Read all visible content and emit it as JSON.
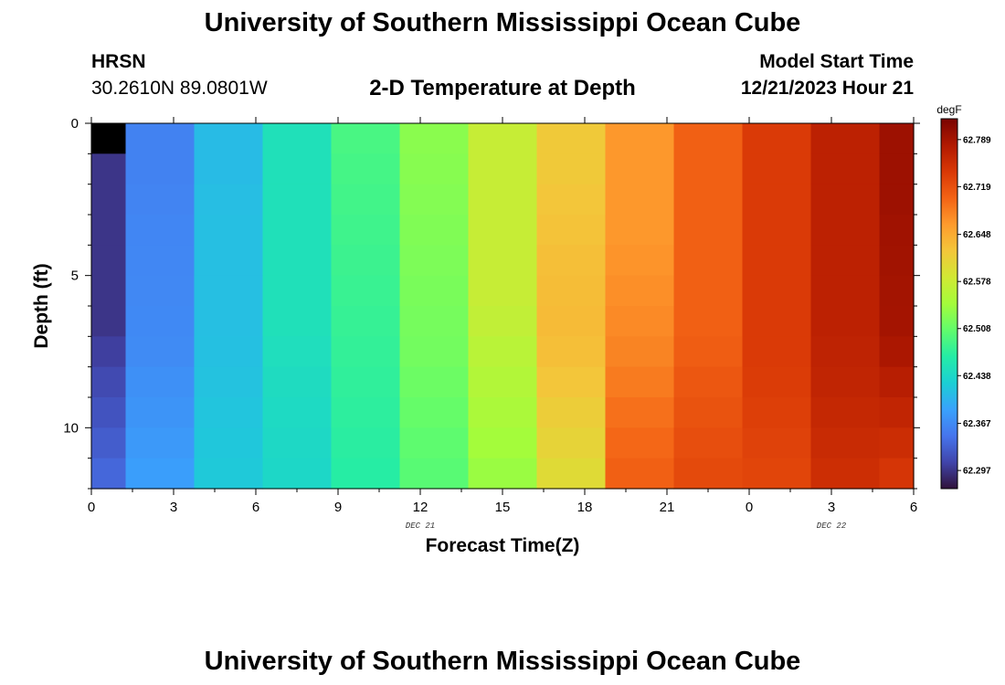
{
  "header": {
    "title": "University of Southern Mississippi Ocean Cube",
    "station_name": "HRSN",
    "station_coords": "30.2610N  89.0801W",
    "plot_title": "2-D Temperature at Depth",
    "model_start_label": "Model Start Time",
    "model_start_time": "12/21/2023 Hour 21"
  },
  "footer": {
    "title": "University of Southern Mississippi Ocean Cube"
  },
  "chart_data": {
    "type": "heatmap",
    "title": "2-D Temperature at Depth",
    "xlabel": "Forecast Time(Z)",
    "ylabel": "Depth (ft)",
    "xlim": [
      0,
      30
    ],
    "ylim": [
      0,
      12
    ],
    "x_tick_labels": [
      "0",
      "3",
      "6",
      "9",
      "12",
      "15",
      "18",
      "21",
      "0",
      "3",
      "6"
    ],
    "date_labels": [
      {
        "text": "DEC 21",
        "x": 12
      },
      {
        "text": "DEC 22",
        "x": 27
      }
    ],
    "y_ticks": [
      0,
      5,
      10
    ],
    "depth_rows": 12,
    "time_columns": [
      0,
      2.5,
      5,
      7.5,
      10,
      12.5,
      15,
      17.5,
      20,
      22.5,
      25,
      27.5,
      30
    ],
    "surface_cell_missing": true,
    "column_values": [
      62.297,
      62.36,
      62.41,
      62.45,
      62.49,
      62.53,
      62.575,
      62.62,
      62.665,
      62.705,
      62.74,
      62.77,
      62.795
    ],
    "depth_adjustments": [
      [
        0,
        0,
        0,
        0,
        0,
        0,
        0,
        0,
        0,
        0,
        0,
        0,
        0
      ],
      [
        0,
        0,
        0,
        0,
        -0.002,
        -0.002,
        0,
        0,
        0,
        0,
        0,
        0,
        0
      ],
      [
        0,
        0.002,
        0.002,
        0,
        -0.004,
        -0.004,
        0,
        0.004,
        0,
        0,
        0,
        0,
        0
      ],
      [
        0,
        0.003,
        0.003,
        0,
        -0.006,
        -0.006,
        0,
        0.006,
        0,
        0,
        0,
        0,
        -0.002
      ],
      [
        0,
        0.004,
        0.003,
        0,
        -0.008,
        -0.008,
        0,
        0.01,
        0.003,
        0,
        0,
        0,
        -0.003
      ],
      [
        0,
        0.005,
        0.003,
        0,
        -0.01,
        -0.01,
        0,
        0.012,
        0.006,
        0,
        0,
        0,
        -0.004
      ],
      [
        0,
        0.006,
        0.003,
        0,
        -0.012,
        -0.012,
        -0.005,
        0.014,
        0.01,
        0,
        0,
        0,
        -0.005
      ],
      [
        0.008,
        0.008,
        0.004,
        -0.003,
        -0.014,
        -0.014,
        -0.012,
        0.01,
        0.014,
        0.003,
        0,
        -0.002,
        -0.01
      ],
      [
        0.016,
        0.012,
        0.006,
        -0.006,
        -0.016,
        -0.018,
        -0.018,
        0.004,
        0.02,
        0.008,
        -0.002,
        -0.004,
        -0.02
      ],
      [
        0.024,
        0.016,
        0.008,
        -0.008,
        -0.018,
        -0.022,
        -0.024,
        -0.004,
        0.028,
        0.012,
        -0.005,
        -0.008,
        -0.03
      ],
      [
        0.032,
        0.02,
        0.01,
        -0.01,
        -0.02,
        -0.026,
        -0.03,
        -0.012,
        0.034,
        0.016,
        -0.008,
        -0.012,
        -0.04
      ],
      [
        0.04,
        0.024,
        0.012,
        -0.012,
        -0.022,
        -0.03,
        -0.036,
        -0.02,
        0.04,
        0.02,
        -0.01,
        -0.016,
        -0.05
      ]
    ],
    "colorbar": {
      "unit": "degF",
      "min": 62.27,
      "max": 62.82,
      "tick_labels": [
        "62.297",
        "62.367",
        "62.438",
        "62.508",
        "62.578",
        "62.648",
        "62.719",
        "62.789"
      ],
      "colormap": [
        "#30123b",
        "#4145ab",
        "#4675ed",
        "#39a2fc",
        "#1bcfd4",
        "#24eca6",
        "#61fc6c",
        "#a4fc3b",
        "#d1e834",
        "#f3c63a",
        "#fe9b2d",
        "#f36315",
        "#d93806",
        "#b11901",
        "#7a0402"
      ]
    }
  }
}
